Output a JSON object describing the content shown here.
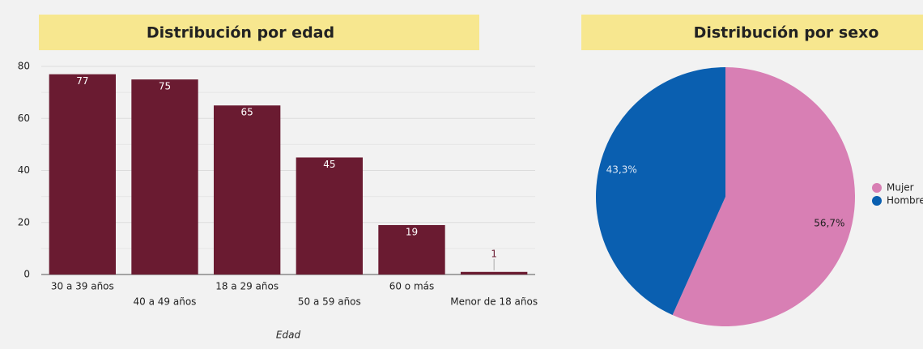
{
  "chart_data": [
    {
      "type": "bar",
      "title": "Distribución por edad",
      "x_label": "Edad",
      "categories": [
        "30 a 39 años",
        "40 a 49 años",
        "18 a 29 años",
        "50 a 59 años",
        "60 o más",
        "Menor de 18 años"
      ],
      "values": [
        77,
        75,
        65,
        45,
        19,
        1
      ],
      "color": "#6a1b31",
      "ylim": [
        0,
        85
      ],
      "yticks": [
        0,
        20,
        40,
        60,
        80
      ],
      "minor_yticks": [
        10,
        30,
        50,
        70
      ],
      "grid": true
    },
    {
      "type": "pie",
      "title": "Distribución por sexo",
      "categories": [
        "Mujer",
        "Hombre"
      ],
      "values": [
        56.7,
        43.3
      ],
      "value_labels": [
        "56,7%",
        "43,3%"
      ],
      "colors": [
        "#d87fb4",
        "#0a5fb0"
      ],
      "legend": "right"
    }
  ]
}
